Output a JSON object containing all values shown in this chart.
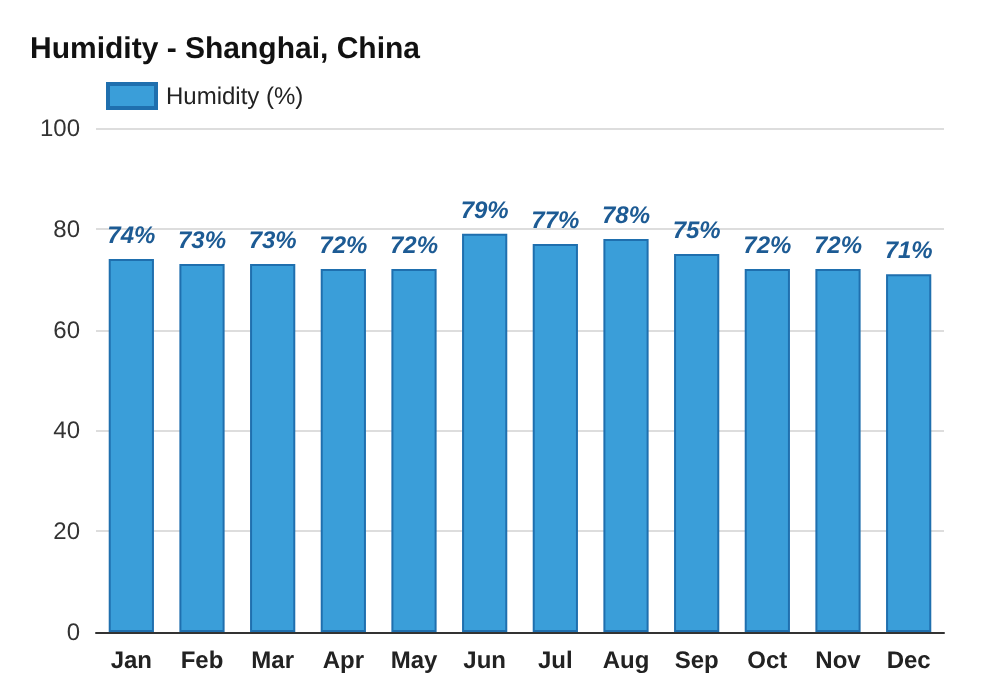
{
  "chart_data": {
    "type": "bar",
    "title": "Humidity - Shanghai, China",
    "categories": [
      "Jan",
      "Feb",
      "Mar",
      "Apr",
      "May",
      "Jun",
      "Jul",
      "Aug",
      "Sep",
      "Oct",
      "Nov",
      "Dec"
    ],
    "series": [
      {
        "name": "Humidity (%)",
        "color": "#3a9ed9",
        "values": [
          74,
          73,
          73,
          72,
          72,
          79,
          77,
          78,
          75,
          72,
          72,
          71
        ],
        "value_labels": [
          "74%",
          "73%",
          "73%",
          "72%",
          "72%",
          "79%",
          "77%",
          "78%",
          "75%",
          "72%",
          "72%",
          "71%"
        ]
      }
    ],
    "ylim": [
      0,
      100
    ],
    "yticks": [
      0,
      20,
      40,
      60,
      80,
      100
    ],
    "grid": "y",
    "legend": "top left"
  }
}
